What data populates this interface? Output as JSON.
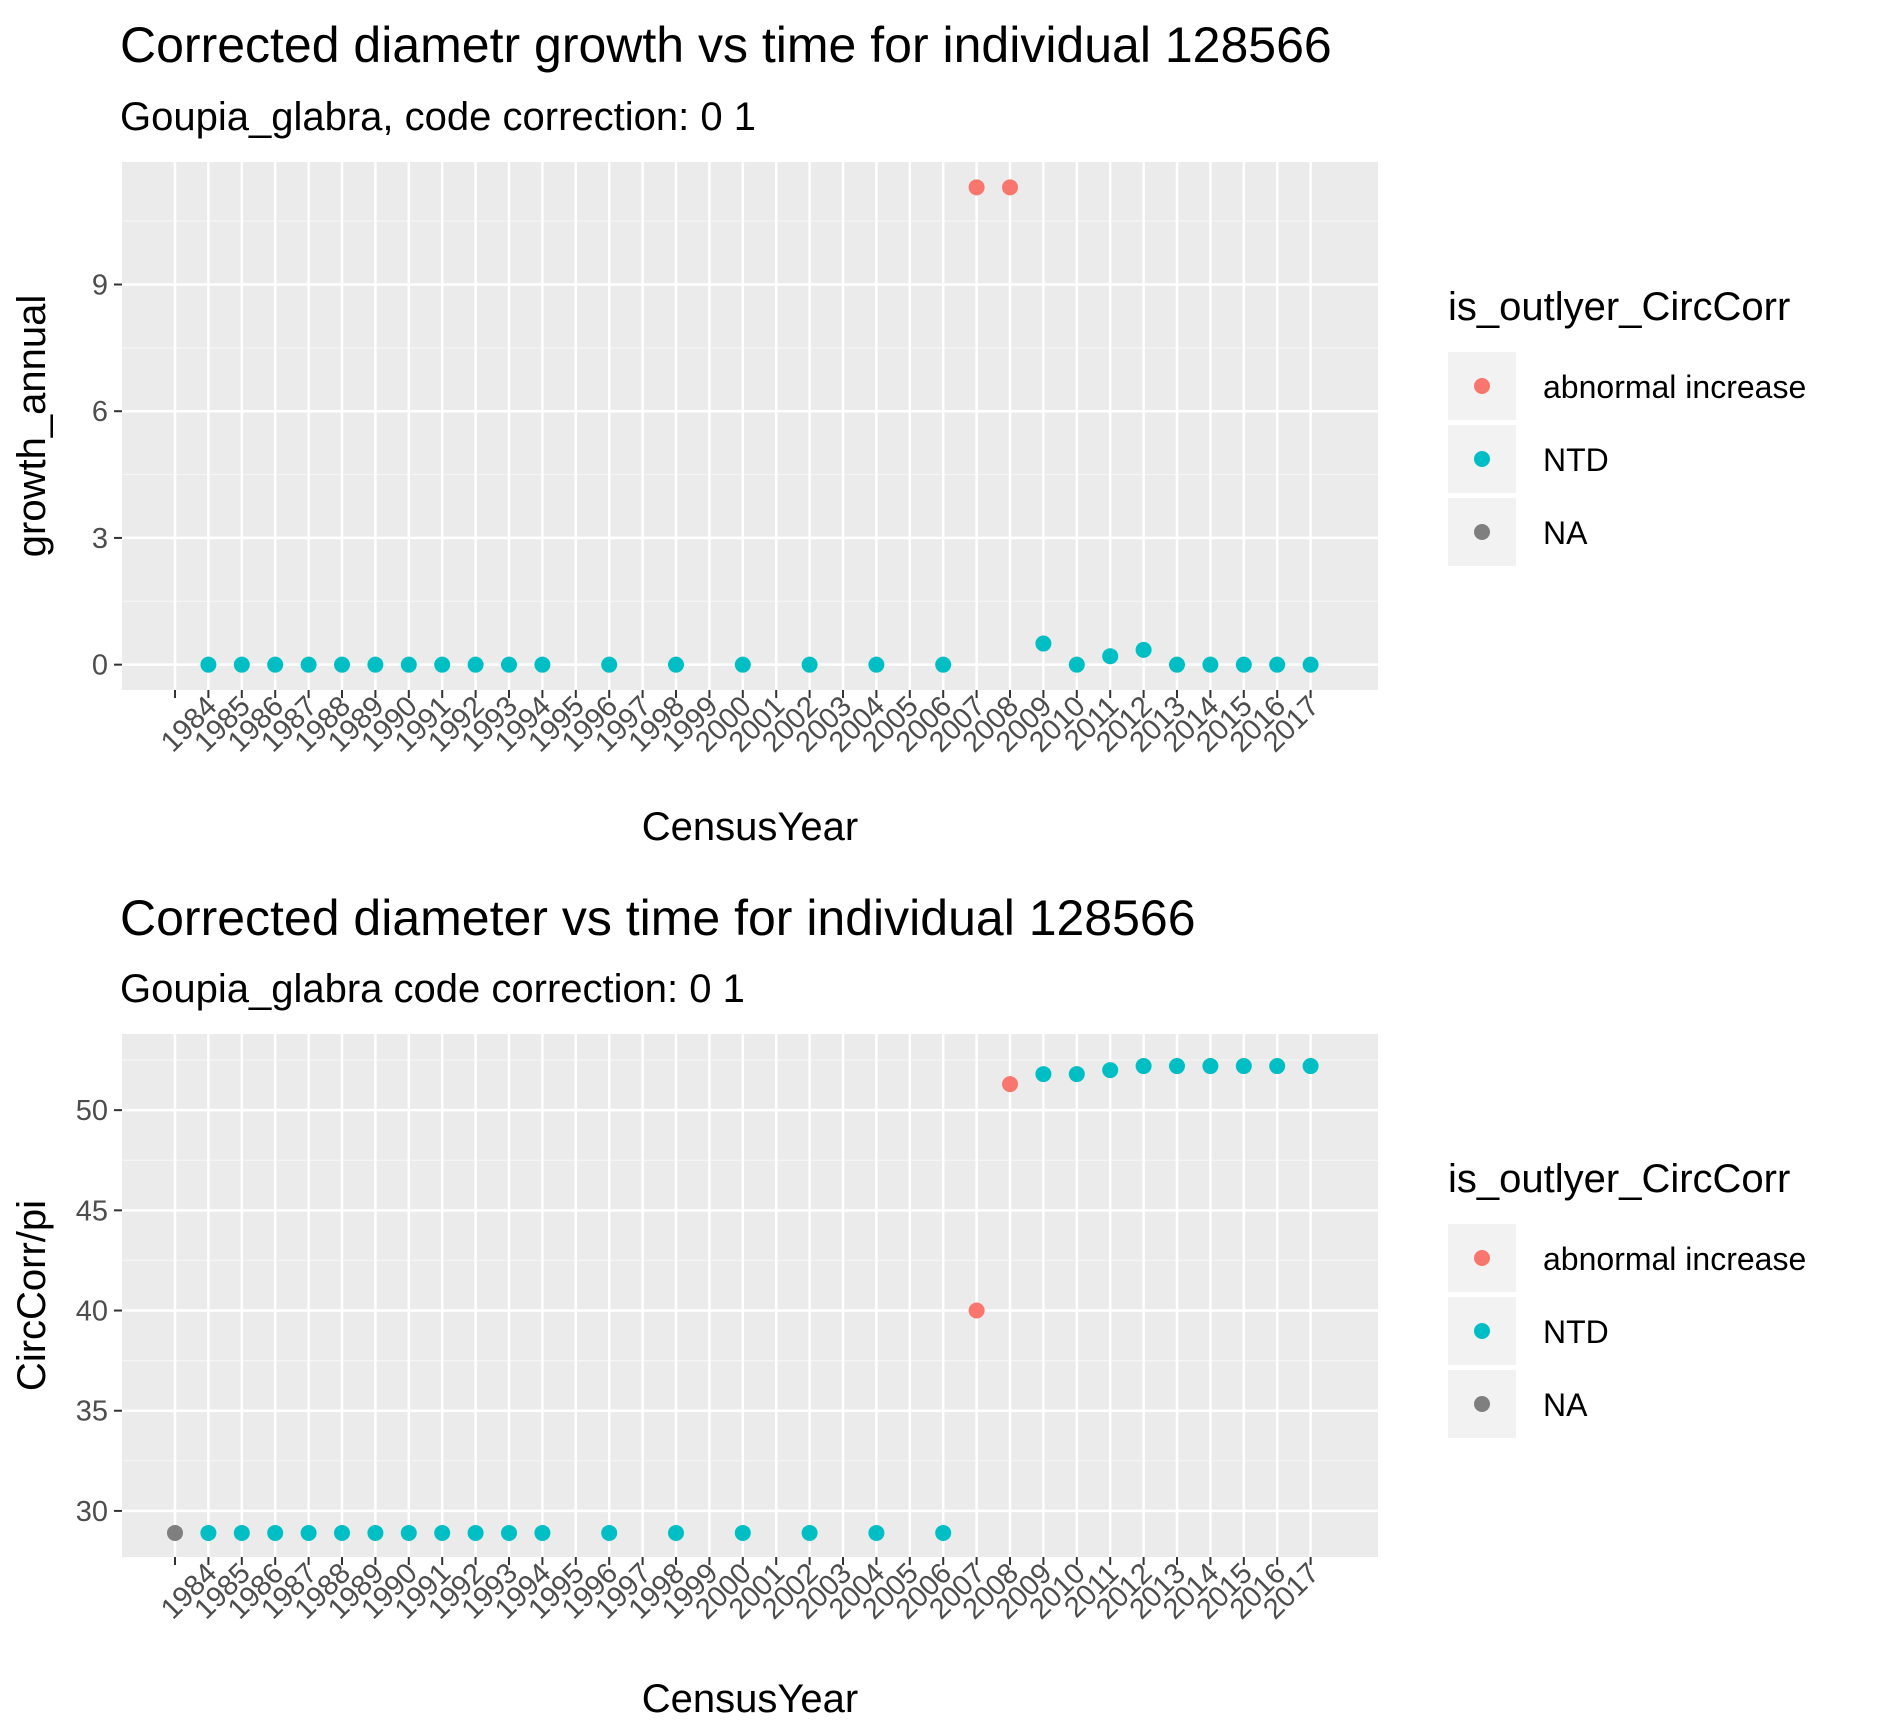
{
  "chart_data": [
    {
      "type": "scatter",
      "title": "Corrected diametr growth vs time for individual 128566",
      "subtitle": "Goupia_glabra, code correction: 0 1",
      "xlabel": "CensusYear",
      "ylabel": "growth_annual",
      "x_categories": [
        "",
        "1984",
        "1985",
        "1986",
        "1987",
        "1988",
        "1989",
        "1990",
        "1991",
        "1992",
        "1993",
        "1994",
        "1995",
        "1996",
        "1997",
        "1998",
        "1999",
        "2000",
        "2001",
        "2002",
        "2003",
        "2004",
        "2005",
        "2006",
        "2007",
        "2008",
        "2009",
        "2010",
        "2011",
        "2012",
        "2013",
        "2014",
        "2015",
        "2016",
        "2017"
      ],
      "y_ticks": [
        0,
        3,
        6,
        9
      ],
      "ylim": [
        -0.6,
        11.9
      ],
      "grid": true,
      "legend": {
        "title": "is_outlyer_CircCorr",
        "position": "right",
        "entries": [
          {
            "label": "abnormal increase",
            "color": "#F8766D"
          },
          {
            "label": "NTD",
            "color": "#00BFC4"
          },
          {
            "label": "NA",
            "color": "#7F7F7F"
          }
        ]
      },
      "points": [
        {
          "x": "1984",
          "y": 0,
          "group": "NTD"
        },
        {
          "x": "1985",
          "y": 0,
          "group": "NTD"
        },
        {
          "x": "1986",
          "y": 0,
          "group": "NTD"
        },
        {
          "x": "1987",
          "y": 0,
          "group": "NTD"
        },
        {
          "x": "1988",
          "y": 0,
          "group": "NTD"
        },
        {
          "x": "1989",
          "y": 0,
          "group": "NTD"
        },
        {
          "x": "1990",
          "y": 0,
          "group": "NTD"
        },
        {
          "x": "1991",
          "y": 0,
          "group": "NTD"
        },
        {
          "x": "1992",
          "y": 0,
          "group": "NTD"
        },
        {
          "x": "1993",
          "y": 0,
          "group": "NTD"
        },
        {
          "x": "1994",
          "y": 0,
          "group": "NTD"
        },
        {
          "x": "1996",
          "y": 0,
          "group": "NTD"
        },
        {
          "x": "1998",
          "y": 0,
          "group": "NTD"
        },
        {
          "x": "2000",
          "y": 0,
          "group": "NTD"
        },
        {
          "x": "2002",
          "y": 0,
          "group": "NTD"
        },
        {
          "x": "2004",
          "y": 0,
          "group": "NTD"
        },
        {
          "x": "2006",
          "y": 0,
          "group": "NTD"
        },
        {
          "x": "2007",
          "y": 11.3,
          "group": "abnormal increase"
        },
        {
          "x": "2008",
          "y": 11.3,
          "group": "abnormal increase"
        },
        {
          "x": "2009",
          "y": 0.5,
          "group": "NTD"
        },
        {
          "x": "2010",
          "y": 0,
          "group": "NTD"
        },
        {
          "x": "2011",
          "y": 0.2,
          "group": "NTD"
        },
        {
          "x": "2012",
          "y": 0.35,
          "group": "NTD"
        },
        {
          "x": "2013",
          "y": 0,
          "group": "NTD"
        },
        {
          "x": "2014",
          "y": 0,
          "group": "NTD"
        },
        {
          "x": "2015",
          "y": 0,
          "group": "NTD"
        },
        {
          "x": "2016",
          "y": 0,
          "group": "NTD"
        },
        {
          "x": "2017",
          "y": 0,
          "group": "NTD"
        }
      ]
    },
    {
      "type": "scatter",
      "title": "Corrected diameter vs time for individual 128566",
      "subtitle": "Goupia_glabra code correction: 0 1",
      "xlabel": "CensusYear",
      "ylabel": "CircCorr/pi",
      "x_categories": [
        "",
        "1984",
        "1985",
        "1986",
        "1987",
        "1988",
        "1989",
        "1990",
        "1991",
        "1992",
        "1993",
        "1994",
        "1995",
        "1996",
        "1997",
        "1998",
        "1999",
        "2000",
        "2001",
        "2002",
        "2003",
        "2004",
        "2005",
        "2006",
        "2007",
        "2008",
        "2009",
        "2010",
        "2011",
        "2012",
        "2013",
        "2014",
        "2015",
        "2016",
        "2017"
      ],
      "y_ticks": [
        30,
        35,
        40,
        45,
        50
      ],
      "ylim": [
        27.7,
        53.8
      ],
      "grid": true,
      "legend": {
        "title": "is_outlyer_CircCorr",
        "position": "right",
        "entries": [
          {
            "label": "abnormal increase",
            "color": "#F8766D"
          },
          {
            "label": "NTD",
            "color": "#00BFC4"
          },
          {
            "label": "NA",
            "color": "#7F7F7F"
          }
        ]
      },
      "points": [
        {
          "x": "",
          "y": 28.9,
          "group": "NA"
        },
        {
          "x": "1984",
          "y": 28.9,
          "group": "NTD"
        },
        {
          "x": "1985",
          "y": 28.9,
          "group": "NTD"
        },
        {
          "x": "1986",
          "y": 28.9,
          "group": "NTD"
        },
        {
          "x": "1987",
          "y": 28.9,
          "group": "NTD"
        },
        {
          "x": "1988",
          "y": 28.9,
          "group": "NTD"
        },
        {
          "x": "1989",
          "y": 28.9,
          "group": "NTD"
        },
        {
          "x": "1990",
          "y": 28.9,
          "group": "NTD"
        },
        {
          "x": "1991",
          "y": 28.9,
          "group": "NTD"
        },
        {
          "x": "1992",
          "y": 28.9,
          "group": "NTD"
        },
        {
          "x": "1993",
          "y": 28.9,
          "group": "NTD"
        },
        {
          "x": "1994",
          "y": 28.9,
          "group": "NTD"
        },
        {
          "x": "1996",
          "y": 28.9,
          "group": "NTD"
        },
        {
          "x": "1998",
          "y": 28.9,
          "group": "NTD"
        },
        {
          "x": "2000",
          "y": 28.9,
          "group": "NTD"
        },
        {
          "x": "2002",
          "y": 28.9,
          "group": "NTD"
        },
        {
          "x": "2004",
          "y": 28.9,
          "group": "NTD"
        },
        {
          "x": "2006",
          "y": 28.9,
          "group": "NTD"
        },
        {
          "x": "2007",
          "y": 40.0,
          "group": "abnormal increase"
        },
        {
          "x": "2008",
          "y": 51.3,
          "group": "abnormal increase"
        },
        {
          "x": "2009",
          "y": 51.8,
          "group": "NTD"
        },
        {
          "x": "2010",
          "y": 51.8,
          "group": "NTD"
        },
        {
          "x": "2011",
          "y": 52.0,
          "group": "NTD"
        },
        {
          "x": "2012",
          "y": 52.2,
          "group": "NTD"
        },
        {
          "x": "2013",
          "y": 52.2,
          "group": "NTD"
        },
        {
          "x": "2014",
          "y": 52.2,
          "group": "NTD"
        },
        {
          "x": "2015",
          "y": 52.2,
          "group": "NTD"
        },
        {
          "x": "2016",
          "y": 52.2,
          "group": "NTD"
        },
        {
          "x": "2017",
          "y": 52.2,
          "group": "NTD"
        }
      ]
    }
  ]
}
